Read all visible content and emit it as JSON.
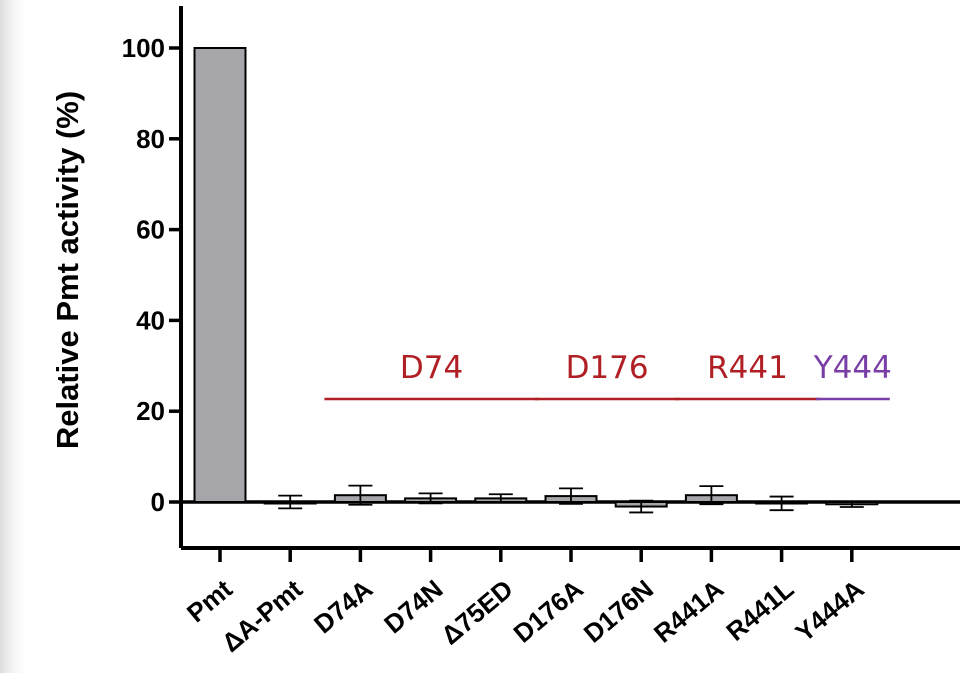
{
  "chart_data": {
    "type": "bar",
    "ylabel": "Relative Pmt activity (%)",
    "ylim": [
      -10,
      110
    ],
    "yticks": [
      0,
      20,
      40,
      60,
      80,
      100
    ],
    "categories": [
      "Pmt",
      "ΔA-Pmt",
      "D74A",
      "D74N",
      "Δ75ED",
      "D176A",
      "D176N",
      "R441A",
      "R441L",
      "Y444A"
    ],
    "values": [
      100,
      0,
      1.5,
      0.8,
      0.8,
      1.3,
      -1.0,
      1.5,
      -0.3,
      -0.5
    ],
    "errors": [
      0,
      1.4,
      2.1,
      1.1,
      0.9,
      1.7,
      1.3,
      2.0,
      1.5,
      0.6
    ],
    "bar_color": "#a6a6aa",
    "groups": [
      {
        "label": "D74",
        "from": 2,
        "to": 4,
        "color": "#b01f24"
      },
      {
        "label": "D176",
        "from": 5,
        "to": 6,
        "color": "#b01f24"
      },
      {
        "label": "R441",
        "from": 7,
        "to": 8,
        "color": "#b01f24"
      },
      {
        "label": "Y444",
        "from": 9,
        "to": 9,
        "color": "#7a3fa6"
      }
    ]
  }
}
